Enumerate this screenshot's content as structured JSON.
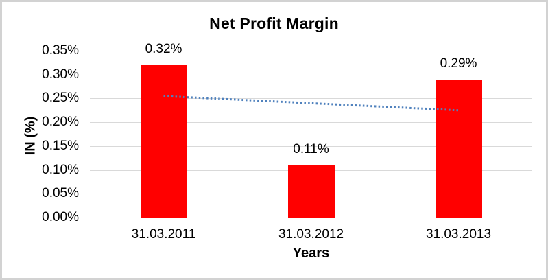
{
  "chart_data": {
    "type": "bar",
    "title": "Net Profit Margin",
    "xlabel": "Years",
    "ylabel": "IN (%)",
    "categories": [
      "31.03.2011",
      "31.03.2012",
      "31.03.2013"
    ],
    "values": [
      0.32,
      0.11,
      0.29
    ],
    "data_labels": [
      "0.32%",
      "0.11%",
      "0.29%"
    ],
    "ylim": [
      0,
      0.35
    ],
    "ytick_step": 0.05,
    "ytick_labels": [
      "0.00%",
      "0.05%",
      "0.10%",
      "0.15%",
      "0.20%",
      "0.25%",
      "0.30%",
      "0.35%"
    ],
    "grid": true,
    "legend": "none",
    "bar_color": "#ff0000",
    "gridline_color": "#d9d9d9",
    "border_color": "#d2d2d2",
    "trendline": {
      "type": "linear",
      "style": "dotted",
      "color": "#4f81bd",
      "start_value": 0.255,
      "end_value": 0.225
    }
  }
}
